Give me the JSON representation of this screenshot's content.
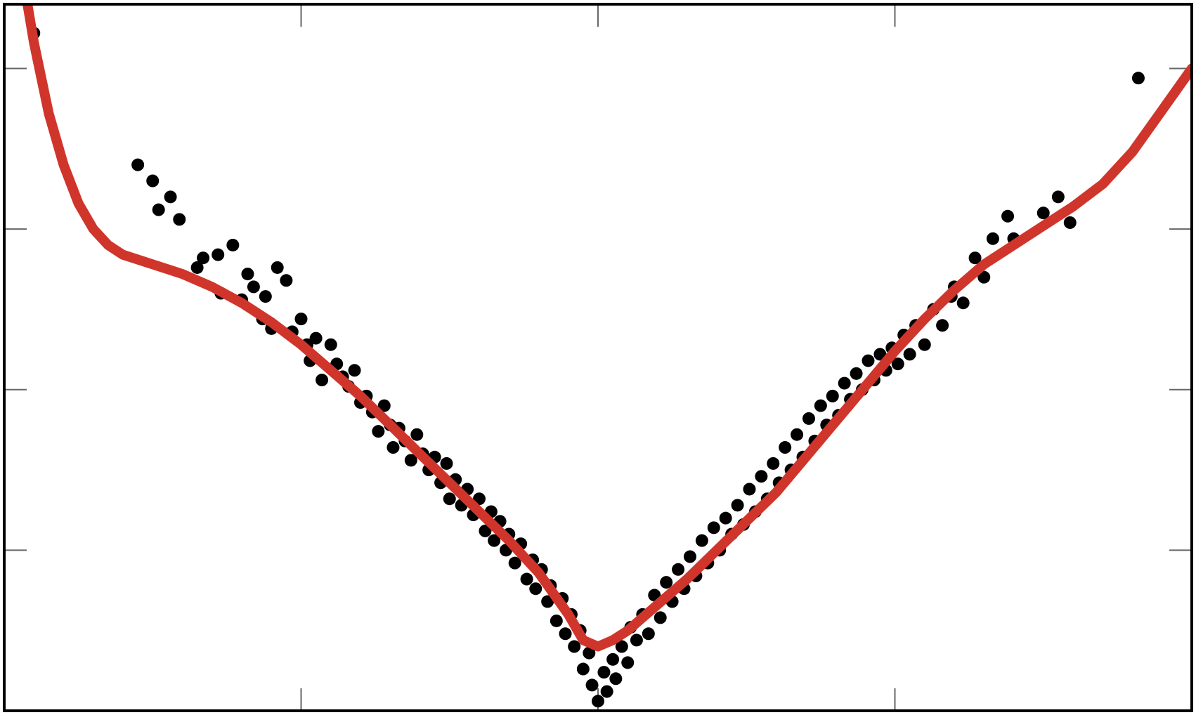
{
  "chart_data": {
    "type": "scatter",
    "title": "",
    "xlabel": "",
    "ylabel": "",
    "xlim": [
      -2,
      2
    ],
    "ylim": [
      0,
      2.2
    ],
    "xticks": [
      -1,
      0,
      1
    ],
    "yticks": [
      0.5,
      1.0,
      1.5,
      2.0
    ],
    "tick_labels_shown": false,
    "grid": false,
    "legend": "none",
    "colors": {
      "points": "#000000",
      "curve": "#d0352b",
      "frame": "#000000",
      "ticks": "#666666"
    },
    "series": [
      {
        "kind": "points",
        "points": [
          [
            -1.9,
            2.11
          ],
          [
            -1.55,
            1.7
          ],
          [
            -1.5,
            1.65
          ],
          [
            -1.48,
            1.56
          ],
          [
            -1.44,
            1.6
          ],
          [
            -1.41,
            1.53
          ],
          [
            -1.35,
            1.38
          ],
          [
            -1.33,
            1.41
          ],
          [
            -1.28,
            1.42
          ],
          [
            -1.27,
            1.3
          ],
          [
            -1.23,
            1.45
          ],
          [
            -1.2,
            1.28
          ],
          [
            -1.18,
            1.36
          ],
          [
            -1.16,
            1.32
          ],
          [
            -1.13,
            1.22
          ],
          [
            -1.12,
            1.29
          ],
          [
            -1.1,
            1.19
          ],
          [
            -1.08,
            1.38
          ],
          [
            -1.05,
            1.34
          ],
          [
            -1.03,
            1.18
          ],
          [
            -1.0,
            1.22
          ],
          [
            -0.98,
            1.14
          ],
          [
            -0.97,
            1.09
          ],
          [
            -0.95,
            1.16
          ],
          [
            -0.93,
            1.03
          ],
          [
            -0.9,
            1.14
          ],
          [
            -0.88,
            1.08
          ],
          [
            -0.86,
            1.04
          ],
          [
            -0.84,
            1.01
          ],
          [
            -0.82,
            1.06
          ],
          [
            -0.8,
            0.96
          ],
          [
            -0.78,
            0.98
          ],
          [
            -0.76,
            0.93
          ],
          [
            -0.74,
            0.87
          ],
          [
            -0.72,
            0.95
          ],
          [
            -0.7,
            0.89
          ],
          [
            -0.69,
            0.82
          ],
          [
            -0.67,
            0.88
          ],
          [
            -0.65,
            0.84
          ],
          [
            -0.63,
            0.78
          ],
          [
            -0.61,
            0.86
          ],
          [
            -0.59,
            0.8
          ],
          [
            -0.57,
            0.75
          ],
          [
            -0.55,
            0.79
          ],
          [
            -0.53,
            0.71
          ],
          [
            -0.51,
            0.77
          ],
          [
            -0.5,
            0.66
          ],
          [
            -0.48,
            0.72
          ],
          [
            -0.46,
            0.64
          ],
          [
            -0.44,
            0.69
          ],
          [
            -0.42,
            0.61
          ],
          [
            -0.4,
            0.66
          ],
          [
            -0.38,
            0.56
          ],
          [
            -0.36,
            0.62
          ],
          [
            -0.35,
            0.53
          ],
          [
            -0.33,
            0.59
          ],
          [
            -0.31,
            0.5
          ],
          [
            -0.3,
            0.55
          ],
          [
            -0.28,
            0.46
          ],
          [
            -0.26,
            0.52
          ],
          [
            -0.24,
            0.41
          ],
          [
            -0.22,
            0.47
          ],
          [
            -0.21,
            0.38
          ],
          [
            -0.19,
            0.44
          ],
          [
            -0.17,
            0.34
          ],
          [
            -0.16,
            0.39
          ],
          [
            -0.14,
            0.28
          ],
          [
            -0.12,
            0.35
          ],
          [
            -0.11,
            0.24
          ],
          [
            -0.09,
            0.3
          ],
          [
            -0.08,
            0.2
          ],
          [
            -0.06,
            0.25
          ],
          [
            -0.05,
            0.13
          ],
          [
            -0.03,
            0.18
          ],
          [
            -0.02,
            0.08
          ],
          [
            0.0,
            0.03
          ],
          [
            0.02,
            0.12
          ],
          [
            0.03,
            0.06
          ],
          [
            0.05,
            0.16
          ],
          [
            0.06,
            0.1
          ],
          [
            0.08,
            0.2
          ],
          [
            0.1,
            0.15
          ],
          [
            0.11,
            0.26
          ],
          [
            0.13,
            0.22
          ],
          [
            0.15,
            0.3
          ],
          [
            0.17,
            0.24
          ],
          [
            0.19,
            0.36
          ],
          [
            0.21,
            0.29
          ],
          [
            0.23,
            0.4
          ],
          [
            0.25,
            0.34
          ],
          [
            0.27,
            0.44
          ],
          [
            0.29,
            0.38
          ],
          [
            0.31,
            0.48
          ],
          [
            0.33,
            0.42
          ],
          [
            0.35,
            0.53
          ],
          [
            0.37,
            0.46
          ],
          [
            0.39,
            0.57
          ],
          [
            0.41,
            0.5
          ],
          [
            0.43,
            0.6
          ],
          [
            0.45,
            0.55
          ],
          [
            0.47,
            0.64
          ],
          [
            0.49,
            0.58
          ],
          [
            0.51,
            0.69
          ],
          [
            0.53,
            0.62
          ],
          [
            0.55,
            0.73
          ],
          [
            0.57,
            0.66
          ],
          [
            0.59,
            0.77
          ],
          [
            0.61,
            0.71
          ],
          [
            0.63,
            0.82
          ],
          [
            0.65,
            0.75
          ],
          [
            0.67,
            0.86
          ],
          [
            0.69,
            0.79
          ],
          [
            0.71,
            0.91
          ],
          [
            0.73,
            0.84
          ],
          [
            0.75,
            0.95
          ],
          [
            0.77,
            0.89
          ],
          [
            0.79,
            0.98
          ],
          [
            0.81,
            0.92
          ],
          [
            0.83,
            1.02
          ],
          [
            0.85,
            0.97
          ],
          [
            0.87,
            1.05
          ],
          [
            0.89,
            1.0
          ],
          [
            0.91,
            1.09
          ],
          [
            0.93,
            1.03
          ],
          [
            0.95,
            1.11
          ],
          [
            0.97,
            1.06
          ],
          [
            0.99,
            1.13
          ],
          [
            1.01,
            1.08
          ],
          [
            1.03,
            1.17
          ],
          [
            1.05,
            1.11
          ],
          [
            1.07,
            1.2
          ],
          [
            1.1,
            1.14
          ],
          [
            1.13,
            1.25
          ],
          [
            1.16,
            1.2
          ],
          [
            1.19,
            1.29
          ],
          [
            1.2,
            1.32
          ],
          [
            1.23,
            1.27
          ],
          [
            1.27,
            1.41
          ],
          [
            1.3,
            1.35
          ],
          [
            1.33,
            1.47
          ],
          [
            1.38,
            1.54
          ],
          [
            1.4,
            1.47
          ],
          [
            1.5,
            1.55
          ],
          [
            1.55,
            1.6
          ],
          [
            1.59,
            1.52
          ],
          [
            1.82,
            1.97
          ]
        ]
      },
      {
        "kind": "fit_curve",
        "points": [
          [
            -1.94,
            2.3
          ],
          [
            -1.9,
            2.08
          ],
          [
            -1.85,
            1.86
          ],
          [
            -1.8,
            1.7
          ],
          [
            -1.75,
            1.58
          ],
          [
            -1.7,
            1.5
          ],
          [
            -1.65,
            1.45
          ],
          [
            -1.6,
            1.42
          ],
          [
            -1.5,
            1.39
          ],
          [
            -1.4,
            1.36
          ],
          [
            -1.3,
            1.32
          ],
          [
            -1.2,
            1.27
          ],
          [
            -1.1,
            1.21
          ],
          [
            -1.0,
            1.14
          ],
          [
            -0.9,
            1.06
          ],
          [
            -0.8,
            0.98
          ],
          [
            -0.7,
            0.89
          ],
          [
            -0.6,
            0.8
          ],
          [
            -0.5,
            0.71
          ],
          [
            -0.4,
            0.62
          ],
          [
            -0.3,
            0.53
          ],
          [
            -0.2,
            0.43
          ],
          [
            -0.1,
            0.3
          ],
          [
            -0.05,
            0.22
          ],
          [
            0.0,
            0.2
          ],
          [
            0.05,
            0.22
          ],
          [
            0.1,
            0.25
          ],
          [
            0.2,
            0.33
          ],
          [
            0.3,
            0.41
          ],
          [
            0.4,
            0.5
          ],
          [
            0.5,
            0.59
          ],
          [
            0.6,
            0.68
          ],
          [
            0.7,
            0.79
          ],
          [
            0.8,
            0.9
          ],
          [
            0.9,
            1.01
          ],
          [
            1.0,
            1.12
          ],
          [
            1.1,
            1.22
          ],
          [
            1.2,
            1.31
          ],
          [
            1.3,
            1.39
          ],
          [
            1.4,
            1.45
          ],
          [
            1.5,
            1.51
          ],
          [
            1.6,
            1.57
          ],
          [
            1.7,
            1.64
          ],
          [
            1.8,
            1.74
          ],
          [
            1.9,
            1.87
          ],
          [
            2.0,
            2.0
          ]
        ]
      }
    ]
  }
}
